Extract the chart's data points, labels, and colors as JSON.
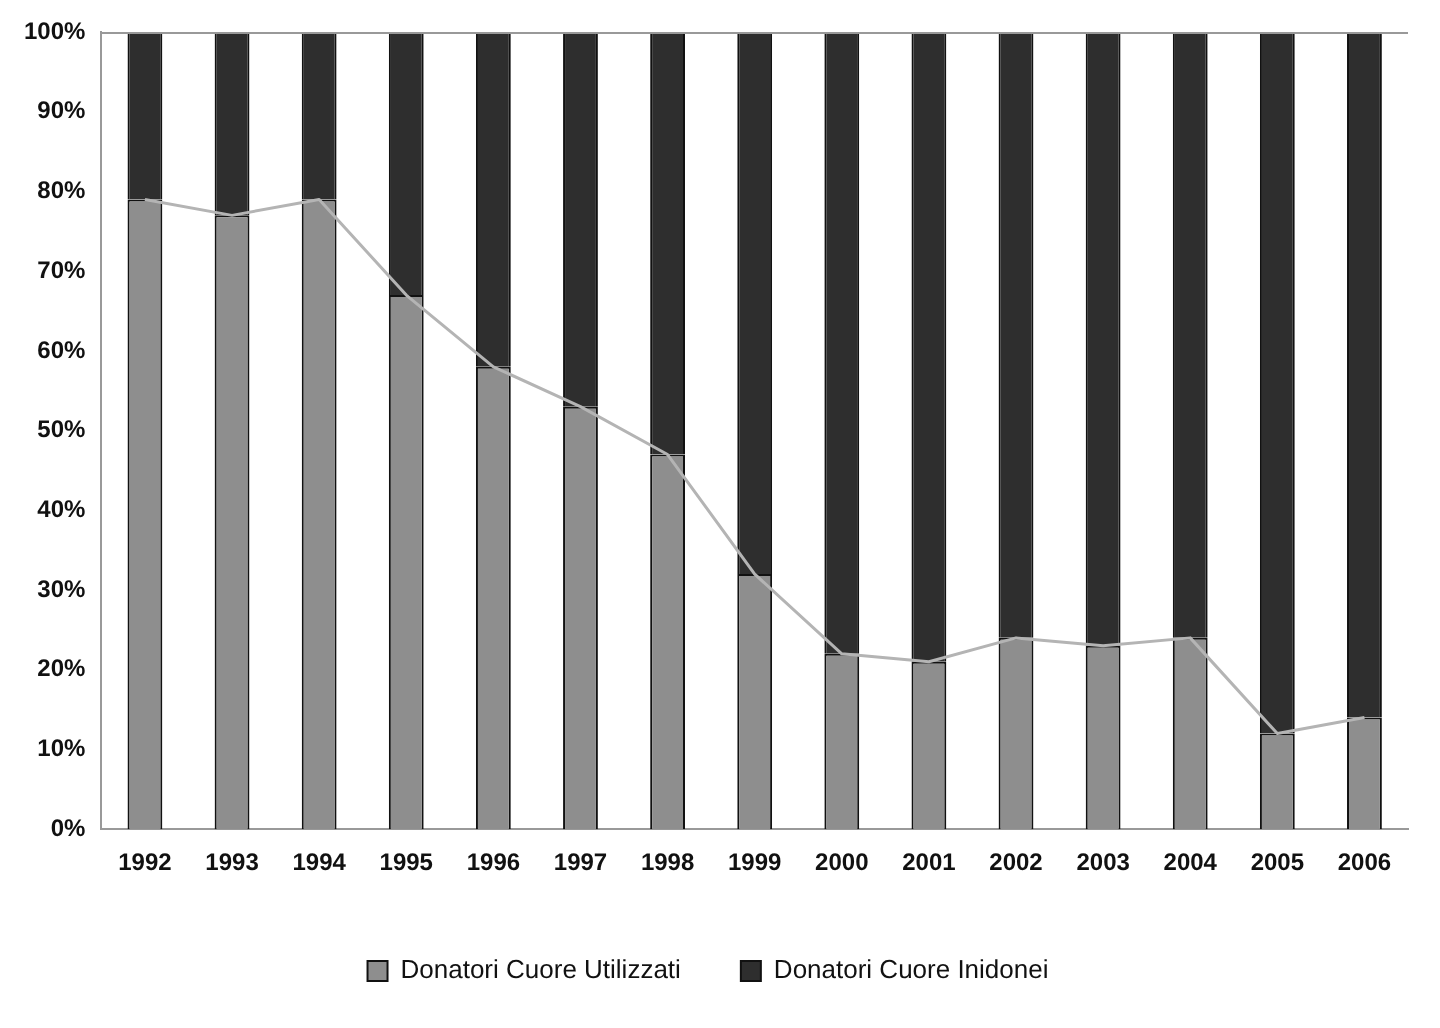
{
  "chart_data": {
    "type": "bar",
    "stacked": true,
    "categories": [
      "1992",
      "1993",
      "1994",
      "1995",
      "1996",
      "1997",
      "1998",
      "1999",
      "2000",
      "2001",
      "2002",
      "2003",
      "2004",
      "2005",
      "2006"
    ],
    "series": [
      {
        "name": "Donatori Cuore Utilizzati",
        "color": "#8e8e8e",
        "values": [
          79,
          77,
          79,
          67,
          58,
          53,
          47,
          32,
          22,
          21,
          24,
          23,
          24,
          12,
          14
        ]
      },
      {
        "name": "Donatori Cuore Inidonei",
        "color": "#2e2e2e",
        "values": [
          21,
          23,
          21,
          33,
          42,
          47,
          53,
          68,
          78,
          79,
          76,
          77,
          76,
          88,
          86
        ]
      },
      {
        "type": "line",
        "color": "#b4b4b4",
        "values": [
          79,
          77,
          79,
          67,
          58,
          53,
          47,
          32,
          22,
          21,
          24,
          23,
          24,
          12,
          14
        ]
      }
    ],
    "ylim": [
      0,
      100
    ],
    "yticks": [
      {
        "value": 0,
        "label": "0%"
      },
      {
        "value": 10,
        "label": "10%"
      },
      {
        "value": 20,
        "label": "20%"
      },
      {
        "value": 30,
        "label": "30%"
      },
      {
        "value": 40,
        "label": "40%"
      },
      {
        "value": 50,
        "label": "50%"
      },
      {
        "value": 60,
        "label": "60%"
      },
      {
        "value": 70,
        "label": "70%"
      },
      {
        "value": 80,
        "label": "80%"
      },
      {
        "value": 90,
        "label": "90%"
      },
      {
        "value": 100,
        "label": "100%"
      }
    ],
    "grid": false,
    "legend": "bottom",
    "marker": "none"
  }
}
